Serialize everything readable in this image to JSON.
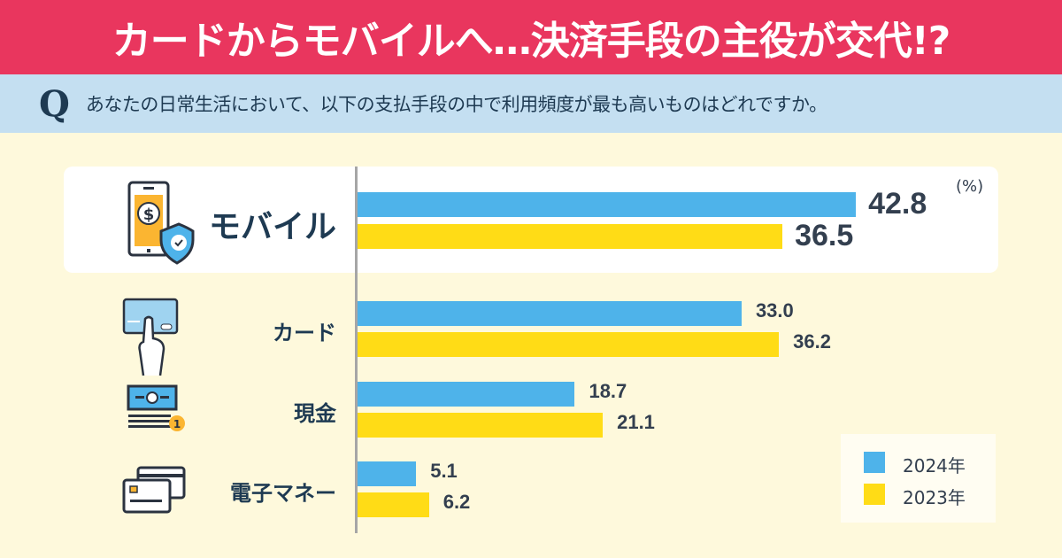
{
  "header": {
    "title": "カードからモバイルへ…決済手段の主役が交代!?"
  },
  "question": {
    "mark": "Q",
    "text": "あなたの日常生活において、以下の支払手段の中で利用頻度が最も高いものはどれですか。"
  },
  "colors": {
    "header_red": "#e9365e",
    "question_blue": "#c4dff1",
    "background": "#fef9dc",
    "series_2024": "#4eb3ea",
    "series_2023": "#ffdc16"
  },
  "chart_data": {
    "type": "bar",
    "orientation": "horizontal",
    "unit_label": "(%)",
    "categories": [
      "モバイル",
      "カード",
      "現金",
      "電子マネー"
    ],
    "icons": [
      "smartphone-shield-icon",
      "credit-card-hand-icon",
      "cash-bills-icon",
      "cards-icon"
    ],
    "series": [
      {
        "name": "2024年",
        "values": [
          42.8,
          33.0,
          18.7,
          5.1
        ],
        "display": [
          "42.8",
          "33.0",
          "18.7",
          "5.1"
        ]
      },
      {
        "name": "2023年",
        "values": [
          36.5,
          36.2,
          21.1,
          6.2
        ],
        "display": [
          "36.5",
          "36.2",
          "21.1",
          "6.2"
        ]
      }
    ],
    "legend": "bottom-right",
    "grid": false,
    "highlight": "モバイル"
  }
}
